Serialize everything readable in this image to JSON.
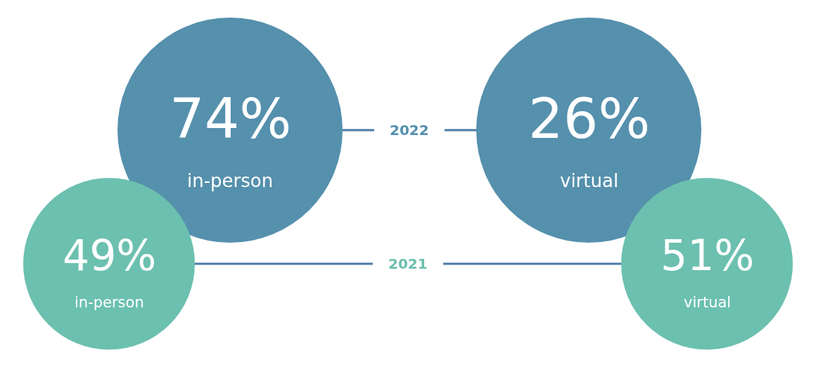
{
  "chart_data": {
    "type": "other",
    "categories": [
      "in-person",
      "virtual"
    ],
    "series": [
      {
        "name": "2022",
        "color": "#5590ad",
        "values": [
          74,
          26
        ],
        "value_labels": [
          "74%",
          "26%"
        ]
      },
      {
        "name": "2021",
        "color": "#6cc0b0",
        "values": [
          49,
          51
        ],
        "value_labels": [
          "49%",
          "51%"
        ]
      }
    ],
    "legend": false
  }
}
